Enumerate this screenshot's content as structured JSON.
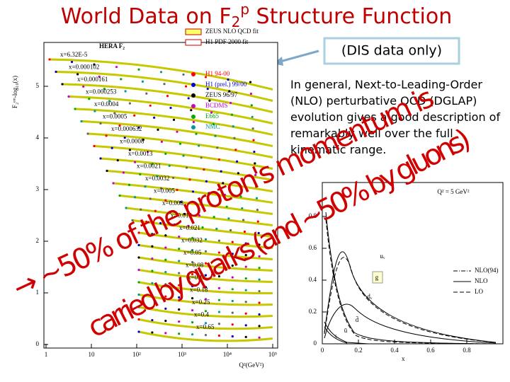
{
  "title": {
    "text_1": "World Data on F",
    "sub": "2",
    "sup": "p",
    "text_2": " Structure Function"
  },
  "note_box": "(DIS data only)",
  "paragraph": "In general, Next-to-Leading-Order (NLO) perturbative QCD (DGLAP) evolution gives a good description of remarkably well over the full kinematic range.",
  "overlay": {
    "line_1": "→ ~50% of the proton's momentum is",
    "line_2": "carried by quarks (and ~50% by gluons)"
  },
  "left_plot": {
    "title": "HERA F₂",
    "y_label": "F₂ᵉᵐ-log₁₀(x)",
    "x_label": "Q²(GeV²)",
    "yticks": [
      0,
      1,
      2,
      3,
      4,
      5
    ],
    "xticks": [
      1,
      10,
      {
        "value": 100,
        "label": "10²"
      },
      {
        "value": 1000,
        "label": "10³"
      },
      {
        "value": 10000,
        "label": "10⁴"
      },
      {
        "value": 100000,
        "label": "10⁵"
      }
    ],
    "legend": [
      "ZEUS NLO QCD fit",
      "H1 PDF 2000 fit",
      "H1 94-00",
      "H1 (prel.) 99/00",
      "ZEUS 96/97",
      "BCDMS",
      "E665",
      "NMC"
    ],
    "x_bins": [
      "x=6.32E-5",
      "x=0.000102",
      "x=0.000161",
      "x=0.000253",
      "x=0.0004",
      "x=0.0005",
      "x=0.000632",
      "x=0.0008",
      "x=0.0013",
      "x=0.0021",
      "x=0.0032",
      "x=0.005",
      "x=0.008",
      "x=0.013",
      "x=0.021",
      "x=0.032",
      "x=0.05",
      "x=0.08",
      "x=0.13",
      "x=0.18",
      "x=0.25",
      "x=0.4",
      "x=0.65"
    ]
  },
  "right_plot": {
    "title": "Q² = 5 GeV²",
    "x_label": "x",
    "yticks": [
      0,
      0.2,
      0.4,
      0.6,
      0.8
    ],
    "xticks": [
      0,
      0.2,
      0.4,
      0.6,
      0.8
    ],
    "legend": [
      "NLO(94)",
      "NLO",
      "LO"
    ],
    "curve_labels": [
      "uᵥ",
      "g",
      "dᵥ",
      "ū",
      "d̄",
      "s"
    ]
  }
}
